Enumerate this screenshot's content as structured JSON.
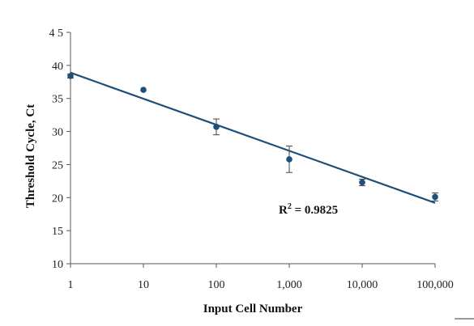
{
  "chart_data": {
    "type": "scatter",
    "xscale": "log",
    "x": [
      1,
      10,
      100,
      1000,
      10000,
      100000
    ],
    "x_tick_labels": [
      "1",
      "10",
      "100",
      "1,000",
      "10,000",
      "100,000"
    ],
    "xlim": [
      1,
      100000
    ],
    "ylim": [
      10,
      45
    ],
    "y_ticks": [
      10,
      15,
      20,
      25,
      30,
      35,
      40,
      45
    ],
    "y_tick_labels": [
      "10",
      "15",
      "20",
      "25",
      "30",
      "35",
      "40",
      "4 5"
    ],
    "series": [
      {
        "values": [
          38.4,
          36.3,
          30.7,
          25.8,
          22.3,
          20.1
        ],
        "errors": [
          0.3,
          0.0,
          1.2,
          2.0,
          0.5,
          0.6
        ]
      }
    ],
    "trendline": {
      "type": "linear-in-log-x",
      "x": [
        1,
        100000
      ],
      "y": [
        38.9,
        19.2
      ]
    },
    "annotation": {
      "text": "R",
      "superscript": "2",
      "value_text": " = 0.9825",
      "x": 10000,
      "y": 18.2
    },
    "xlabel": "Input Cell Number",
    "ylabel": "Threshold Cycle, Ct",
    "grid": false,
    "legend": "none",
    "colors": {
      "marker": "#1f4e79",
      "trendline": "#1f4e79",
      "axis": "#555555",
      "error_bar": "#444444"
    }
  }
}
